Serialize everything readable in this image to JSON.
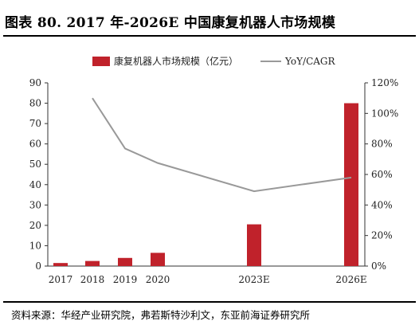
{
  "header": {
    "title": "图表 80. 2017 年-2026E 中国康复机器人市场规模"
  },
  "footer": {
    "source": "资料来源：华经产业研究院，弗若斯特沙利文，东亚前海证券研究所"
  },
  "chart_data": {
    "type": "bar",
    "categories": [
      "2017",
      "2018",
      "2019",
      "2020",
      "2023E",
      "2026E"
    ],
    "series": [
      {
        "name": "康复机器人市场规模（亿元）",
        "type": "bar",
        "axis": "left",
        "color": "#c0222b",
        "values": [
          1.5,
          2.5,
          4.0,
          6.5,
          20.5,
          80.0
        ]
      },
      {
        "name": "YoY/CAGR",
        "type": "line",
        "axis": "right",
        "color": "#999999",
        "values": [
          null,
          1.1,
          0.77,
          0.675,
          0.49,
          0.58
        ]
      }
    ],
    "y_left": {
      "min": 0,
      "max": 90,
      "step": 10,
      "ticks": [
        "0",
        "10",
        "20",
        "30",
        "40",
        "50",
        "60",
        "70",
        "80",
        "90"
      ]
    },
    "y_right": {
      "min": 0,
      "max": 1.2,
      "step": 0.2,
      "ticks": [
        "0%",
        "20%",
        "40%",
        "60%",
        "80%",
        "100%",
        "120%"
      ]
    },
    "grid": false,
    "legend_position": "top-center"
  }
}
